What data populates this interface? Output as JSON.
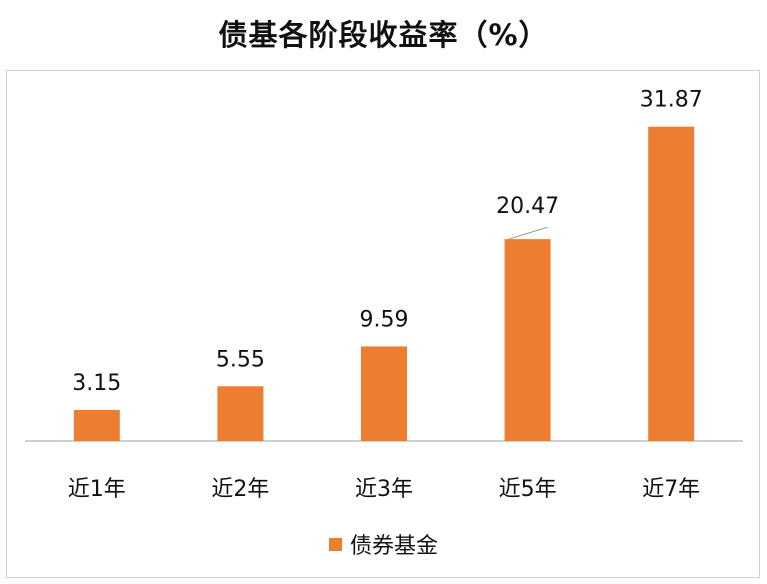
{
  "chart_data": {
    "type": "bar",
    "title": "债基各阶段收益率（%）",
    "categories": [
      "近1年",
      "近2年",
      "近3年",
      "近5年",
      "近7年"
    ],
    "series": [
      {
        "name": "债券基金",
        "values": [
          3.15,
          5.55,
          9.59,
          20.47,
          31.87
        ],
        "labels": [
          "3.15",
          "5.55",
          "9.59",
          "20.47",
          "31.87"
        ],
        "color": "#ED7D31"
      }
    ],
    "xlabel": "",
    "ylabel": "",
    "ylim": [
      0,
      36
    ],
    "grid": false,
    "legend_position": "bottom"
  }
}
